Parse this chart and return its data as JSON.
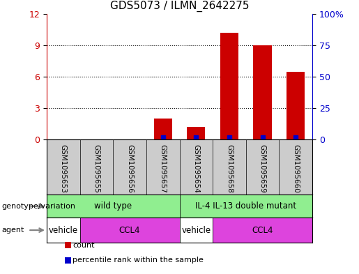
{
  "title": "GDS5073 / ILMN_2642275",
  "samples": [
    "GSM1095653",
    "GSM1095655",
    "GSM1095656",
    "GSM1095657",
    "GSM1095654",
    "GSM1095658",
    "GSM1095659",
    "GSM1095660"
  ],
  "count_values": [
    0,
    0,
    0,
    2.0,
    1.2,
    10.2,
    9.0,
    6.5
  ],
  "percentile_values": [
    0,
    0,
    0,
    0.3,
    0.3,
    0.3,
    0.3,
    0.3
  ],
  "left_ylim": [
    0,
    12
  ],
  "right_ylim": [
    0,
    100
  ],
  "left_yticks": [
    0,
    3,
    6,
    9,
    12
  ],
  "right_yticks": [
    0,
    25,
    50,
    75,
    100
  ],
  "left_yticklabels": [
    "0",
    "3",
    "6",
    "9",
    "12"
  ],
  "right_yticklabels": [
    "0",
    "25",
    "50",
    "75",
    "100%"
  ],
  "bar_color": "#cc0000",
  "percentile_color": "#0000cc",
  "bar_width": 0.55,
  "genotype_groups": [
    {
      "label": "wild type",
      "start": 0,
      "end": 4,
      "color": "#90ee90"
    },
    {
      "label": "IL-4 IL-13 double mutant",
      "start": 4,
      "end": 8,
      "color": "#90ee90"
    }
  ],
  "agent_groups": [
    {
      "label": "vehicle",
      "start": 0,
      "end": 1,
      "color": "#ffffff"
    },
    {
      "label": "CCL4",
      "start": 1,
      "end": 4,
      "color": "#dd44dd"
    },
    {
      "label": "vehicle",
      "start": 4,
      "end": 5,
      "color": "#ffffff"
    },
    {
      "label": "CCL4",
      "start": 5,
      "end": 8,
      "color": "#dd44dd"
    }
  ],
  "legend_items": [
    {
      "label": "count",
      "color": "#cc0000"
    },
    {
      "label": "percentile rank within the sample",
      "color": "#0000cc"
    }
  ],
  "genotype_label": "genotype/variation",
  "agent_label": "agent",
  "sample_bg_color": "#cccccc",
  "plot_bg": "#ffffff",
  "fig_bg": "#ffffff"
}
